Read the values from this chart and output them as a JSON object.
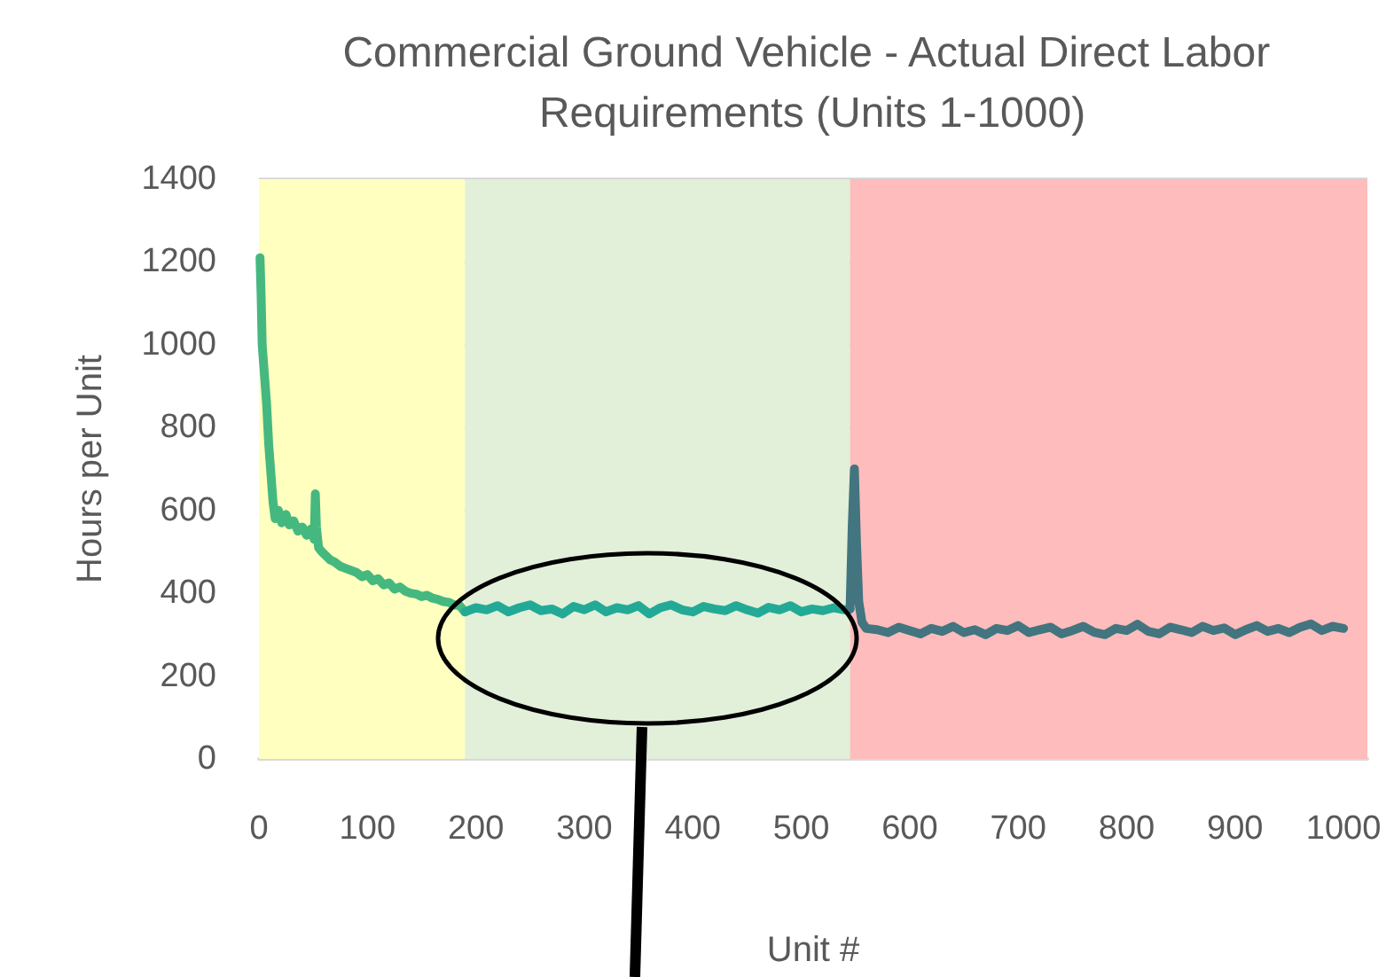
{
  "chart_data": {
    "type": "line",
    "title": "Commercial Ground Vehicle - Actual Direct Labor Requirements (Units 1-1000)",
    "xlabel": "Unit #",
    "ylabel": "Hours per Unit",
    "xlim": [
      0,
      1022
    ],
    "xticks": [
      0,
      100,
      200,
      300,
      400,
      500,
      600,
      700,
      800,
      900,
      1000
    ],
    "ylim": [
      0,
      1400
    ],
    "yticks": [
      0,
      200,
      400,
      600,
      800,
      1000,
      1200,
      1400
    ],
    "grid": "y",
    "marker": "none",
    "line_style": "solid",
    "bands": [
      {
        "axis": "x",
        "from": 0,
        "to": 190,
        "color": "#ffffc0"
      },
      {
        "axis": "x",
        "from": 190,
        "to": 545,
        "color": "#e2efd9"
      },
      {
        "axis": "x",
        "from": 545,
        "to": 1022,
        "color": "#ffbcbc"
      }
    ],
    "series": [
      {
        "color": "#45b880",
        "x": [
          1,
          2,
          3,
          5,
          7,
          9,
          11,
          13,
          15,
          18,
          21,
          25,
          28,
          32,
          36,
          40,
          44,
          48,
          51,
          52,
          53,
          55,
          58,
          62,
          66,
          70,
          75,
          80,
          85,
          90,
          95,
          100,
          105,
          110,
          115,
          120,
          125,
          130,
          135,
          140,
          145,
          150,
          155,
          160,
          165,
          170,
          175,
          180,
          185,
          190
        ],
        "values": [
          1210,
          1120,
          1000,
          930,
          860,
          760,
          690,
          620,
          580,
          600,
          570,
          590,
          565,
          575,
          550,
          560,
          540,
          555,
          530,
          640,
          560,
          510,
          500,
          490,
          480,
          475,
          465,
          460,
          455,
          450,
          440,
          445,
          430,
          435,
          420,
          425,
          410,
          415,
          405,
          400,
          398,
          392,
          395,
          388,
          385,
          380,
          378,
          372,
          370,
          355
        ]
      },
      {
        "color": "#23aa96",
        "x": [
          190,
          200,
          210,
          220,
          230,
          240,
          250,
          260,
          270,
          280,
          290,
          300,
          310,
          320,
          330,
          340,
          350,
          360,
          370,
          380,
          390,
          400,
          410,
          420,
          430,
          440,
          450,
          460,
          470,
          480,
          490,
          500,
          510,
          520,
          530,
          540,
          545
        ],
        "values": [
          355,
          365,
          360,
          370,
          355,
          365,
          372,
          358,
          362,
          350,
          368,
          360,
          372,
          355,
          365,
          360,
          370,
          350,
          365,
          372,
          360,
          355,
          368,
          362,
          358,
          370,
          360,
          352,
          366,
          360,
          370,
          355,
          362,
          358,
          365,
          360,
          362
        ]
      },
      {
        "color": "#42757f",
        "x": [
          545,
          547,
          549,
          551,
          553,
          556,
          560,
          570,
          580,
          590,
          600,
          610,
          620,
          630,
          640,
          650,
          660,
          670,
          680,
          690,
          700,
          710,
          720,
          730,
          740,
          750,
          760,
          770,
          780,
          790,
          800,
          810,
          820,
          830,
          840,
          850,
          860,
          870,
          880,
          890,
          900,
          910,
          920,
          930,
          940,
          950,
          960,
          970,
          980,
          990,
          1000
        ],
        "values": [
          362,
          560,
          700,
          520,
          380,
          330,
          315,
          312,
          305,
          318,
          310,
          302,
          315,
          308,
          320,
          305,
          312,
          300,
          315,
          310,
          322,
          305,
          312,
          318,
          302,
          310,
          320,
          306,
          300,
          315,
          310,
          325,
          308,
          302,
          318,
          312,
          305,
          320,
          310,
          316,
          300,
          312,
          322,
          308,
          315,
          305,
          318,
          326,
          310,
          320,
          315
        ]
      }
    ]
  }
}
